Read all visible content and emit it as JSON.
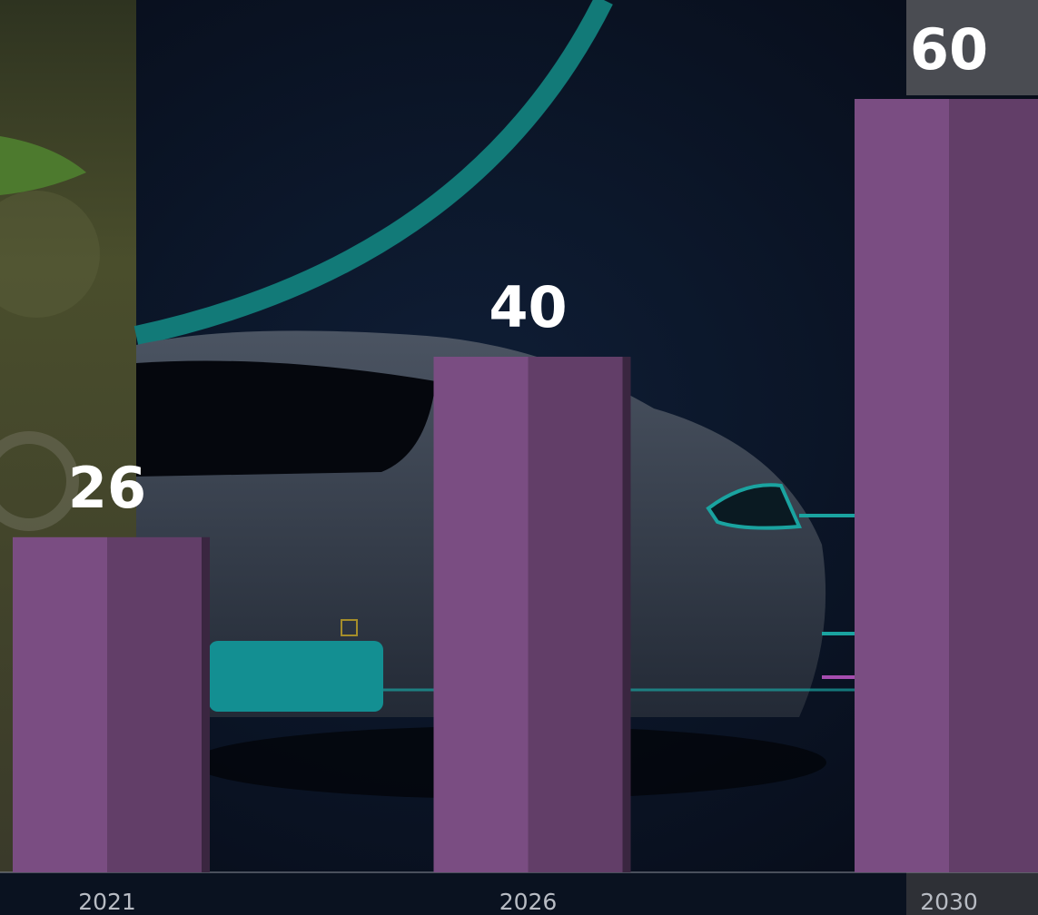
{
  "chart_data": {
    "type": "bar",
    "categories": [
      "2021",
      "2026",
      "2030"
    ],
    "values": [
      26,
      40,
      60
    ],
    "color": "#7a4d82"
  }
}
